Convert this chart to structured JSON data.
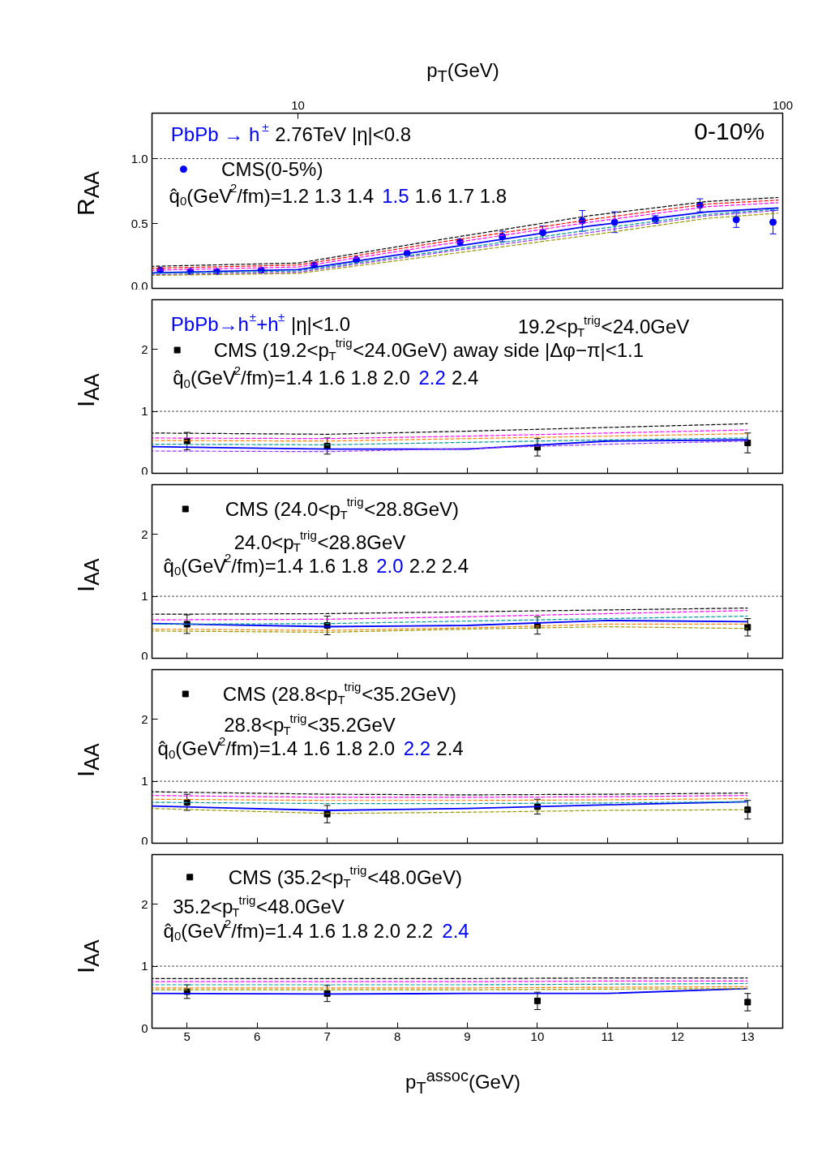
{
  "chart_data": [
    {
      "type": "line",
      "title": "PbPb → h$^{±}$",
      "xlabel": "p$_{T}$(GeV)",
      "ylabel": "R$_{AA}$",
      "log": "x",
      "xlim": [
        5,
        100
      ],
      "xticks": [
        10,
        100
      ],
      "ylim": [
        0,
        1.35
      ],
      "yticks": [
        {
          "value": 0,
          "label": "0.0"
        },
        {
          "value": 0.5,
          "label": "0.5"
        },
        {
          "value": 1,
          "label": "1.0"
        }
      ],
      "legend": "top left",
      "annotations": [
        "2.76TeV |η|<0.8",
        "0-10%",
        "q̂$_{0}$(GeV$^{2}$/fm)=1.2 1.3 1.4",
        "1.6 1.7 1.8"
      ],
      "ref_lines": [
        {
          "axis": "y",
          "value": 1,
          "color": "#000000",
          "line_style": "dotted"
        }
      ],
      "series": [
        {
          "color": "#000000",
          "line_style": "dashed",
          "x": [
            5,
            10,
            20,
            40,
            70,
            98
          ],
          "values": [
            0.17,
            0.195,
            0.38,
            0.56,
            0.67,
            0.7
          ]
        },
        {
          "color": "#ff0000",
          "line_style": "dashed",
          "x": [
            5,
            10,
            20,
            40,
            70,
            98
          ],
          "values": [
            0.155,
            0.18,
            0.36,
            0.53,
            0.65,
            0.68
          ]
        },
        {
          "color": "#ff00ff",
          "line_style": "dashed",
          "x": [
            5,
            10,
            20,
            40,
            70,
            98
          ],
          "values": [
            0.14,
            0.165,
            0.34,
            0.51,
            0.63,
            0.66
          ]
        },
        {
          "name": "1.5",
          "color": "#0000ff",
          "line_style": "solid",
          "x": [
            5,
            10,
            20,
            40,
            70,
            98
          ],
          "values": [
            0.12,
            0.145,
            0.31,
            0.48,
            0.59,
            0.62
          ]
        },
        {
          "color": "#009999",
          "line_style": "dashed",
          "x": [
            5,
            10,
            20,
            40,
            70,
            98
          ],
          "values": [
            0.115,
            0.135,
            0.29,
            0.45,
            0.57,
            0.61
          ]
        },
        {
          "color": "#9933ff",
          "line_style": "dashed",
          "x": [
            5,
            10,
            20,
            40,
            70,
            98
          ],
          "values": [
            0.105,
            0.125,
            0.28,
            0.43,
            0.56,
            0.6
          ]
        },
        {
          "color": "#999900",
          "line_style": "dashed",
          "x": [
            5,
            10,
            20,
            40,
            70,
            98
          ],
          "values": [
            0.1,
            0.115,
            0.26,
            0.41,
            0.54,
            0.58
          ]
        },
        {
          "name": "CMS(0-5%)",
          "type": "scatter",
          "marker": "circle",
          "color": "#0000ff",
          "x": [
            5.2,
            6.0,
            6.8,
            8.4,
            10.8,
            13.2,
            16.8,
            21.6,
            26.4,
            32,
            38.6,
            45,
            54.6,
            67.5,
            80.2,
            95.5
          ],
          "values": [
            0.14,
            0.13,
            0.13,
            0.14,
            0.18,
            0.22,
            0.27,
            0.36,
            0.4,
            0.43,
            0.52,
            0.51,
            0.53,
            0.64,
            0.53,
            0.51
          ],
          "errors": [
            null,
            null,
            null,
            null,
            null,
            null,
            null,
            0.02,
            0.04,
            0.05,
            0.08,
            0.08,
            0.03,
            0.05,
            0.06,
            0.09
          ]
        }
      ]
    },
    {
      "type": "line",
      "title": "PbPb→h$^{±}$+h$^{±}$",
      "ylabel": "I$_{AA}$",
      "xlim": [
        4.5,
        13.5
      ],
      "xticks": [
        5,
        6,
        7,
        8,
        9,
        10,
        11,
        12,
        13
      ],
      "ylim": [
        0,
        2.8
      ],
      "yticks": [
        0,
        1,
        2
      ],
      "tick_labels": "y",
      "legend": "top left",
      "annotations": [
        "|η|<1.0",
        "19.2<p$_{T}$$^{trig}$<24.0GeV",
        "q̂$_{0}$(GeV$^{2}$/fm)=1.4 1.6 1.8 2.0",
        "2.4"
      ],
      "ref_lines": [
        {
          "axis": "y",
          "value": 1,
          "color": "#000000",
          "line_style": "dotted"
        }
      ],
      "series": [
        {
          "color": "#000000",
          "line_style": "dashed",
          "x": [
            4.5,
            7,
            9,
            11,
            13
          ],
          "values": [
            0.65,
            0.63,
            0.68,
            0.74,
            0.8
          ]
        },
        {
          "color": "#ff00ff",
          "line_style": "dashed",
          "x": [
            4.5,
            7,
            9,
            11,
            13
          ],
          "values": [
            0.57,
            0.56,
            0.6,
            0.65,
            0.7
          ]
        },
        {
          "color": "#ff8000",
          "line_style": "dashed",
          "x": [
            4.5,
            7,
            9,
            11,
            13
          ],
          "values": [
            0.53,
            0.52,
            0.56,
            0.6,
            0.64
          ]
        },
        {
          "color": "#009999",
          "line_style": "dashed",
          "x": [
            4.5,
            7,
            9,
            11,
            13
          ],
          "values": [
            0.47,
            0.46,
            0.5,
            0.54,
            0.57
          ]
        },
        {
          "name": "2.2",
          "color": "#0000ff",
          "line_style": "solid",
          "x": [
            4.5,
            7,
            9,
            11,
            13
          ],
          "values": [
            0.43,
            0.39,
            0.39,
            0.52,
            0.54
          ]
        },
        {
          "color": "#9933ff",
          "line_style": "dashed",
          "x": [
            4.5,
            7,
            9,
            11,
            13
          ],
          "values": [
            0.36,
            0.35,
            0.4,
            0.47,
            0.52
          ]
        },
        {
          "name": "CMS (19.2<p$_{T}$$^{trig}$<24.0GeV) away side |Δφ−π|<1.1",
          "type": "scatter",
          "marker": "square",
          "color": "#000000",
          "x": [
            5,
            7,
            10,
            13
          ],
          "values": [
            0.52,
            0.44,
            0.42,
            0.49
          ],
          "errors": [
            0.14,
            0.13,
            0.14,
            0.16
          ]
        }
      ]
    },
    {
      "type": "line",
      "ylabel": "I$_{AA}$",
      "xlim": [
        4.5,
        13.5
      ],
      "xticks": [
        5,
        6,
        7,
        8,
        9,
        10,
        11,
        12,
        13
      ],
      "ylim": [
        0,
        2.8
      ],
      "yticks": [
        0,
        1,
        2
      ],
      "tick_labels": "y",
      "legend": "top left",
      "annotations": [
        "24.0<p$_{T}$$^{trig}$<28.8GeV",
        "q̂$_{0}$(GeV$^{2}$/fm)=1.4 1.6 1.8",
        "2.2 2.4"
      ],
      "ref_lines": [
        {
          "axis": "y",
          "value": 1,
          "color": "#000000",
          "line_style": "dotted"
        }
      ],
      "series": [
        {
          "color": "#000000",
          "line_style": "dashed",
          "x": [
            4.5,
            7,
            9,
            11,
            13
          ],
          "values": [
            0.71,
            0.72,
            0.75,
            0.78,
            0.81
          ]
        },
        {
          "color": "#ff00ff",
          "line_style": "dashed",
          "x": [
            4.5,
            7,
            9,
            11,
            13
          ],
          "values": [
            0.62,
            0.63,
            0.67,
            0.72,
            0.77
          ]
        },
        {
          "color": "#009999",
          "line_style": "dashed",
          "x": [
            4.5,
            7,
            9,
            11,
            13
          ],
          "values": [
            0.55,
            0.56,
            0.6,
            0.64,
            0.68
          ]
        },
        {
          "name": "2.0",
          "color": "#0000ff",
          "line_style": "solid",
          "x": [
            4.5,
            7,
            9,
            11,
            13
          ],
          "values": [
            0.56,
            0.51,
            0.53,
            0.61,
            0.59
          ]
        },
        {
          "color": "#ff8000",
          "line_style": "dashed",
          "x": [
            4.5,
            7,
            9,
            11,
            13
          ],
          "values": [
            0.47,
            0.45,
            0.49,
            0.55,
            0.55
          ]
        },
        {
          "color": "#999900",
          "line_style": "dashed",
          "x": [
            4.5,
            7,
            9,
            11,
            13
          ],
          "values": [
            0.44,
            0.42,
            0.47,
            0.51,
            0.48
          ]
        },
        {
          "name": "CMS (24.0<p$_{T}$$^{trig}$<28.8GeV)",
          "type": "scatter",
          "marker": "square",
          "color": "#000000",
          "x": [
            5,
            7,
            10,
            13
          ],
          "values": [
            0.55,
            0.53,
            0.53,
            0.5
          ],
          "errors": [
            0.15,
            0.15,
            0.14,
            0.14
          ]
        }
      ]
    },
    {
      "type": "line",
      "ylabel": "I$_{AA}$",
      "xlim": [
        4.5,
        13.5
      ],
      "xticks": [
        5,
        6,
        7,
        8,
        9,
        10,
        11,
        12,
        13
      ],
      "ylim": [
        0,
        2.8
      ],
      "yticks": [
        0,
        1,
        2
      ],
      "tick_labels": "y",
      "legend": "top left",
      "annotations": [
        "28.8<p$_{T}$$^{trig}$<35.2GeV",
        "q̂$_{0}$(GeV$^{2}$/fm)=1.4 1.6 1.8 2.0",
        "2.4"
      ],
      "ref_lines": [
        {
          "axis": "y",
          "value": 1,
          "color": "#000000",
          "line_style": "dotted"
        }
      ],
      "series": [
        {
          "color": "#000000",
          "line_style": "dashed",
          "x": [
            4.5,
            7,
            9,
            11,
            13
          ],
          "values": [
            0.83,
            0.79,
            0.78,
            0.79,
            0.81
          ]
        },
        {
          "color": "#ff00ff",
          "line_style": "dashed",
          "x": [
            4.5,
            7,
            9,
            11,
            13
          ],
          "values": [
            0.77,
            0.74,
            0.74,
            0.75,
            0.77
          ]
        },
        {
          "color": "#ff8000",
          "line_style": "dashed",
          "x": [
            4.5,
            7,
            9,
            11,
            13
          ],
          "values": [
            0.71,
            0.69,
            0.69,
            0.7,
            0.72
          ]
        },
        {
          "color": "#009999",
          "line_style": "dashed",
          "x": [
            4.5,
            7,
            9,
            11,
            13
          ],
          "values": [
            0.66,
            0.64,
            0.64,
            0.65,
            0.67
          ]
        },
        {
          "name": "2.2",
          "color": "#0000ff",
          "line_style": "solid",
          "x": [
            4.5,
            7,
            9,
            11,
            13
          ],
          "values": [
            0.6,
            0.53,
            0.56,
            0.62,
            0.67
          ]
        },
        {
          "color": "#999900",
          "line_style": "dashed",
          "x": [
            4.5,
            7,
            9,
            11,
            13
          ],
          "values": [
            0.56,
            0.48,
            0.5,
            0.53,
            0.54
          ]
        },
        {
          "name": "CMS (28.8<p$_{T}$$^{trig}$<35.2GeV)",
          "type": "scatter",
          "marker": "square",
          "color": "#000000",
          "x": [
            5,
            7,
            10,
            13
          ],
          "values": [
            0.66,
            0.47,
            0.59,
            0.54
          ],
          "errors": [
            0.13,
            0.14,
            0.12,
            0.15
          ]
        }
      ]
    },
    {
      "type": "line",
      "ylabel": "I$_{AA}$",
      "xlabel": "p$_{T}$$^{assoc}$(GeV)",
      "xlim": [
        4.5,
        13.5
      ],
      "xticks": [
        5,
        6,
        7,
        8,
        9,
        10,
        11,
        12,
        13
      ],
      "ylim": [
        0,
        2.8
      ],
      "yticks": [
        0,
        1,
        2
      ],
      "legend": "top left",
      "annotations": [
        "35.2<p$_{T}$$^{trig}$<48.0GeV",
        "q̂$_{0}$(GeV$^{2}$/fm)=1.4 1.6 1.8 2.0 2.2"
      ],
      "ref_lines": [
        {
          "axis": "y",
          "value": 1,
          "color": "#000000",
          "line_style": "dotted"
        }
      ],
      "series": [
        {
          "color": "#000000",
          "line_style": "dashed",
          "x": [
            4.5,
            7,
            9,
            11,
            13
          ],
          "values": [
            0.8,
            0.8,
            0.8,
            0.81,
            0.81
          ]
        },
        {
          "color": "#ff00ff",
          "line_style": "dashed",
          "x": [
            4.5,
            7,
            9,
            11,
            13
          ],
          "values": [
            0.75,
            0.75,
            0.75,
            0.76,
            0.76
          ]
        },
        {
          "color": "#009999",
          "line_style": "dashed",
          "x": [
            4.5,
            7,
            9,
            11,
            13
          ],
          "values": [
            0.7,
            0.7,
            0.7,
            0.71,
            0.72
          ]
        },
        {
          "color": "#ff8000",
          "line_style": "dashed",
          "x": [
            4.5,
            7,
            9,
            11,
            13
          ],
          "values": [
            0.65,
            0.65,
            0.65,
            0.66,
            0.67
          ]
        },
        {
          "color": "#999900",
          "line_style": "dashed",
          "x": [
            4.5,
            7,
            9,
            11,
            13
          ],
          "values": [
            0.62,
            0.62,
            0.62,
            0.63,
            0.64
          ]
        },
        {
          "name": "2.4",
          "color": "#0000ff",
          "line_style": "solid",
          "x": [
            4.5,
            7,
            9,
            11,
            13
          ],
          "values": [
            0.56,
            0.55,
            0.56,
            0.56,
            0.64
          ]
        },
        {
          "name": "CMS (35.2<p$_{T}$$^{trig}$<48.0GeV)",
          "type": "scatter",
          "marker": "square",
          "color": "#000000",
          "x": [
            5,
            7,
            10,
            13
          ],
          "values": [
            0.59,
            0.56,
            0.44,
            0.42
          ],
          "errors": [
            0.11,
            0.13,
            0.14,
            0.14
          ]
        }
      ]
    }
  ]
}
